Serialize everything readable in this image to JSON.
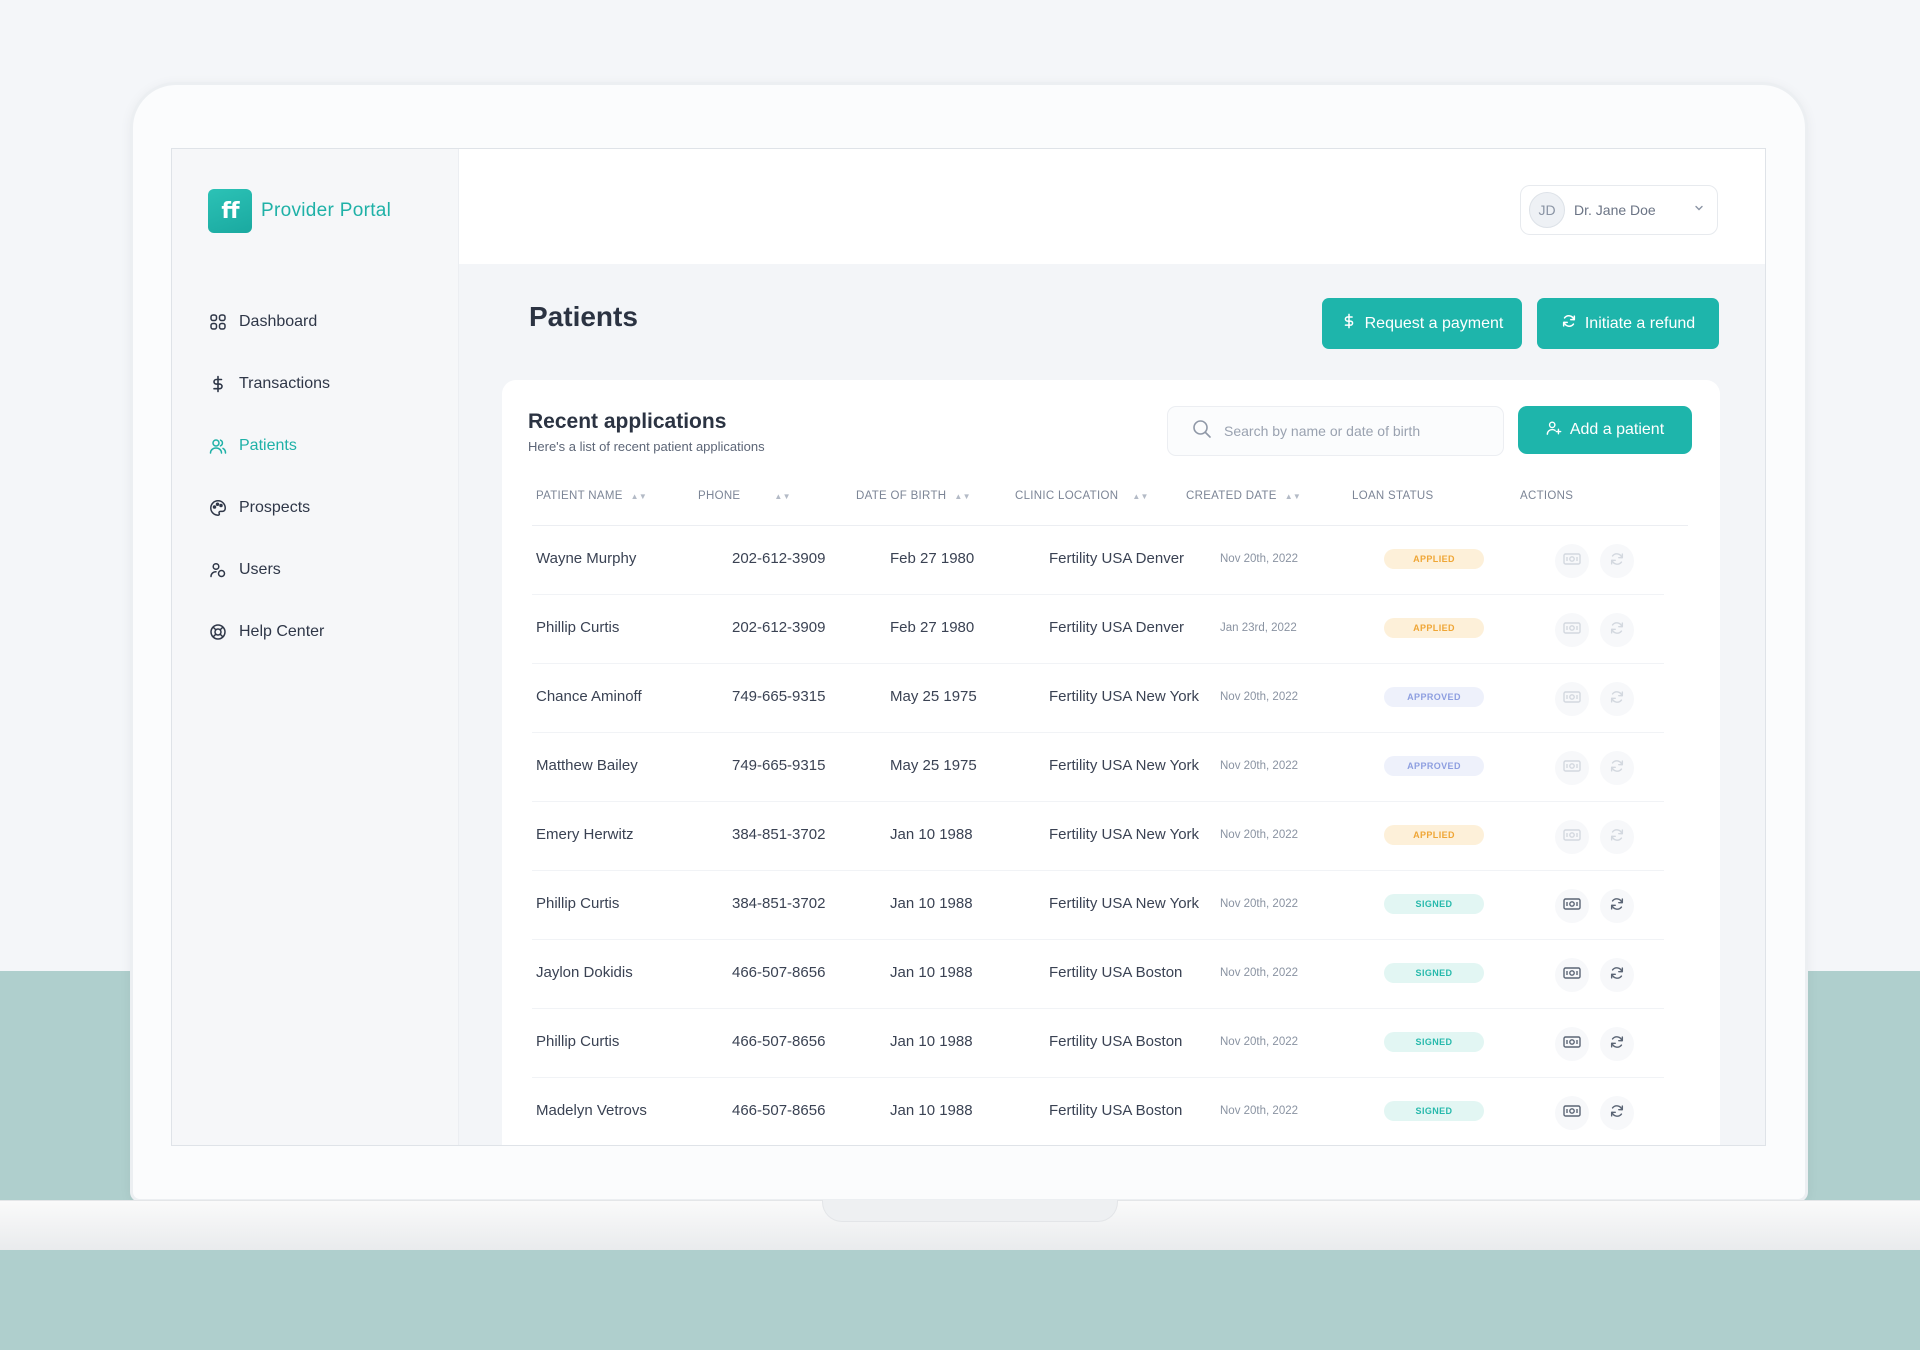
{
  "app": {
    "brand_logo_text": "ff",
    "brand_name": "Provider Portal"
  },
  "sidebar": {
    "items": [
      {
        "label": "Dashboard",
        "icon": "grid-icon",
        "active": false
      },
      {
        "label": "Transactions",
        "icon": "dollar-icon",
        "active": false
      },
      {
        "label": "Patients",
        "icon": "users-icon",
        "active": true
      },
      {
        "label": "Prospects",
        "icon": "palette-icon",
        "active": false
      },
      {
        "label": "Users",
        "icon": "user-group-icon",
        "active": false
      },
      {
        "label": "Help Center",
        "icon": "lifebuoy-icon",
        "active": false
      }
    ]
  },
  "topbar": {
    "user_initials": "JD",
    "user_name": "Dr. Jane Doe"
  },
  "page": {
    "title": "Patients",
    "request_payment_label": "Request a payment",
    "initiate_refund_label": "Initiate a refund"
  },
  "recent": {
    "title": "Recent applications",
    "subtitle": "Here's a list of recent patient applications",
    "search_placeholder": "Search by name or date of birth",
    "add_patient_label": "Add a patient",
    "columns": [
      "PATIENT NAME",
      "PHONE",
      "DATE OF BIRTH",
      "CLINIC LOCATION",
      "CREATED DATE",
      "LOAN STATUS",
      "ACTIONS"
    ],
    "rows": [
      {
        "name": "Wayne Murphy",
        "phone": "202-612-3909",
        "dob": "Feb 27 1980",
        "location": "Fertility USA Denver",
        "created": "Nov 20th, 2022",
        "status": "APPLIED"
      },
      {
        "name": "Phillip Curtis",
        "phone": "202-612-3909",
        "dob": "Feb 27 1980",
        "location": "Fertility USA Denver",
        "created": "Jan 23rd, 2022",
        "status": "APPLIED"
      },
      {
        "name": "Chance Aminoff",
        "phone": "749-665-9315",
        "dob": "May 25 1975",
        "location": "Fertility USA New York",
        "created": "Nov 20th, 2022",
        "status": "APPROVED"
      },
      {
        "name": "Matthew Bailey",
        "phone": "749-665-9315",
        "dob": "May 25 1975",
        "location": "Fertility USA New York",
        "created": "Nov 20th, 2022",
        "status": "APPROVED"
      },
      {
        "name": "Emery Herwitz",
        "phone": "384-851-3702",
        "dob": "Jan 10 1988",
        "location": "Fertility USA New York",
        "created": "Nov 20th, 2022",
        "status": "APPLIED"
      },
      {
        "name": "Phillip Curtis",
        "phone": "384-851-3702",
        "dob": "Jan 10 1988",
        "location": "Fertility USA New York",
        "created": "Nov 20th, 2022",
        "status": "SIGNED"
      },
      {
        "name": "Jaylon Dokidis",
        "phone": "466-507-8656",
        "dob": "Jan 10 1988",
        "location": "Fertility USA Boston",
        "created": "Nov 20th, 2022",
        "status": "SIGNED"
      },
      {
        "name": "Phillip Curtis",
        "phone": "466-507-8656",
        "dob": "Jan 10 1988",
        "location": "Fertility USA Boston",
        "created": "Nov 20th, 2022",
        "status": "SIGNED"
      },
      {
        "name": "Madelyn Vetrovs",
        "phone": "466-507-8656",
        "dob": "Jan 10 1988",
        "location": "Fertility USA Boston",
        "created": "Nov 20th, 2022",
        "status": "SIGNED"
      }
    ]
  },
  "colors": {
    "accent": "#1eb5ab",
    "applied": "#efa636",
    "approved": "#8d9ee0",
    "signed": "#27b9ac",
    "backdrop": "#afcfcd"
  }
}
